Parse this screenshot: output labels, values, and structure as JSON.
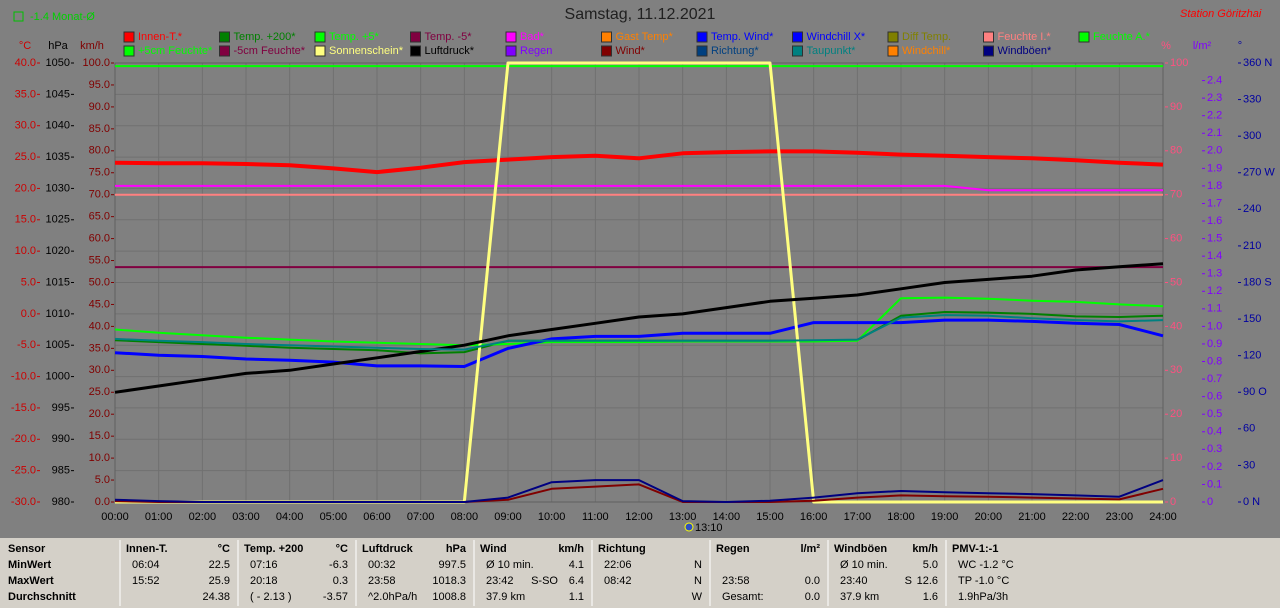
{
  "chart_data": {
    "type": "line",
    "title": "Samstag, 11.12.2021",
    "station": "Station Göritzhai",
    "month_average": "-1.4 Monat-Ø",
    "marker_label": "13:10",
    "grid": true,
    "x": [
      0,
      1,
      2,
      3,
      4,
      5,
      6,
      7,
      8,
      9,
      10,
      11,
      12,
      13,
      14,
      15,
      16,
      17,
      18,
      19,
      20,
      21,
      22,
      23,
      24
    ],
    "xlim": [
      0,
      24
    ],
    "xticks": [
      {
        "value": 0,
        "label": "00:00"
      },
      {
        "value": 1,
        "label": "01:00"
      },
      {
        "value": 2,
        "label": "02:00"
      },
      {
        "value": 3,
        "label": "03:00"
      },
      {
        "value": 4,
        "label": "04:00"
      },
      {
        "value": 5,
        "label": "05:00"
      },
      {
        "value": 6,
        "label": "06:00"
      },
      {
        "value": 7,
        "label": "07:00"
      },
      {
        "value": 8,
        "label": "08:00"
      },
      {
        "value": 9,
        "label": "09:00"
      },
      {
        "value": 10,
        "label": "10:00"
      },
      {
        "value": 11,
        "label": "11:00"
      },
      {
        "value": 12,
        "label": "12:00"
      },
      {
        "value": 13,
        "label": "13:00"
      },
      {
        "value": 14,
        "label": "14:00"
      },
      {
        "value": 15,
        "label": "15:00"
      },
      {
        "value": 16,
        "label": "16:00"
      },
      {
        "value": 17,
        "label": "17:00"
      },
      {
        "value": 18,
        "label": "18:00"
      },
      {
        "value": 19,
        "label": "19:00"
      },
      {
        "value": 20,
        "label": "20:00"
      },
      {
        "value": 21,
        "label": "21:00"
      },
      {
        "value": 22,
        "label": "22:00"
      },
      {
        "value": 23,
        "label": "23:00"
      },
      {
        "value": 24,
        "label": "24:00"
      }
    ],
    "axes": [
      {
        "unit": "°C",
        "color": "#cc0000",
        "side": "left",
        "lim": [
          -30,
          40
        ],
        "ticks": [
          {
            "value": 40,
            "label": "40.0"
          },
          {
            "value": 35,
            "label": "35.0"
          },
          {
            "value": 30,
            "label": "30.0"
          },
          {
            "value": 25,
            "label": "25.0"
          },
          {
            "value": 20,
            "label": "20.0"
          },
          {
            "value": 15,
            "label": "15.0"
          },
          {
            "value": 10,
            "label": "10.0"
          },
          {
            "value": 5,
            "label": "5.0"
          },
          {
            "value": 0,
            "label": "0.0"
          },
          {
            "value": -5,
            "label": "-5.0"
          },
          {
            "value": -10,
            "label": "-10.0"
          },
          {
            "value": -15,
            "label": "-15.0"
          },
          {
            "value": -20,
            "label": "-20.0"
          },
          {
            "value": -25,
            "label": "-25.0"
          },
          {
            "value": -30,
            "label": "-30.0"
          }
        ]
      },
      {
        "unit": "hPa",
        "color": "#000000",
        "side": "left",
        "lim": [
          980,
          1050
        ],
        "ticks": [
          1050,
          1045,
          1040,
          1035,
          1030,
          1025,
          1020,
          1015,
          1010,
          1005,
          1000,
          995,
          990,
          985,
          980
        ]
      },
      {
        "unit": "km/h",
        "color": "#800000",
        "side": "left",
        "lim": [
          0,
          100
        ],
        "ticks": [
          {
            "value": 100,
            "label": "100.0"
          },
          {
            "value": 95,
            "label": "95.0"
          },
          {
            "value": 90,
            "label": "90.0"
          },
          {
            "value": 85,
            "label": "85.0"
          },
          {
            "value": 80,
            "label": "80.0"
          },
          {
            "value": 75,
            "label": "75.0"
          },
          {
            "value": 70,
            "label": "70.0"
          },
          {
            "value": 65,
            "label": "65.0"
          },
          {
            "value": 60,
            "label": "60.0"
          },
          {
            "value": 55,
            "label": "55.0"
          },
          {
            "value": 50,
            "label": "50.0"
          },
          {
            "value": 45,
            "label": "45.0"
          },
          {
            "value": 40,
            "label": "40.0"
          },
          {
            "value": 35,
            "label": "35.0"
          },
          {
            "value": 30,
            "label": "30.0"
          },
          {
            "value": 25,
            "label": "25.0"
          },
          {
            "value": 20,
            "label": "20.0"
          },
          {
            "value": 15,
            "label": "15.0"
          },
          {
            "value": 10,
            "label": "10.0"
          },
          {
            "value": 5,
            "label": "5.0"
          },
          {
            "value": 0,
            "label": "0.0"
          }
        ]
      },
      {
        "unit": "%",
        "color": "#ff5080",
        "side": "right",
        "lim": [
          0,
          100
        ],
        "ticks": [
          100,
          90,
          80,
          70,
          60,
          50,
          40,
          30,
          20,
          10,
          0
        ]
      },
      {
        "unit": "l/m²",
        "color": "#8000ff",
        "side": "right",
        "lim": [
          0,
          2.5
        ],
        "ticks": [
          2.4,
          2.3,
          2.2,
          2.1,
          {
            "value": 2,
            "label": "2.0"
          },
          1.9,
          1.8,
          1.7,
          1.6,
          1.5,
          1.4,
          1.3,
          1.2,
          1.1,
          {
            "value": 1,
            "label": "1.0"
          },
          0.9,
          0.8,
          0.7,
          0.6,
          0.5,
          0.4,
          0.3,
          0.2,
          0.1,
          0
        ]
      },
      {
        "unit": "°",
        "color": "#0000a0",
        "side": "right",
        "lim": [
          0,
          360
        ],
        "ticks": [
          {
            "value": 360,
            "label": "360 N"
          },
          330,
          300,
          {
            "value": 270,
            "label": "270 W"
          },
          240,
          210,
          {
            "value": 180,
            "label": "180 S"
          },
          150,
          120,
          {
            "value": 90,
            "label": "90 O"
          },
          60,
          30,
          {
            "value": 0,
            "label": "0 N"
          }
        ]
      }
    ],
    "series": [
      {
        "name": "Innen-T.*",
        "color": "#ff0000",
        "axis": 0,
        "width": 4,
        "values": [
          24.1,
          24,
          24,
          23.9,
          23.7,
          23.2,
          22.6,
          23.3,
          24.2,
          24.6,
          25,
          25.2,
          24.8,
          25.6,
          25.8,
          25.9,
          25.9,
          25.7,
          25.4,
          25.2,
          25,
          24.8,
          24.5,
          24.1,
          23.8
        ]
      },
      {
        "name": "Temp. +200*",
        "color": "#008000",
        "axis": 0,
        "width": 2,
        "values": [
          -4.2,
          -4.5,
          -4.8,
          -5.1,
          -5.4,
          -5.6,
          -5.8,
          -6.3,
          -6.1,
          -4.3,
          -4.3,
          -4.3,
          -4.3,
          -4.3,
          -4.3,
          -4.3,
          -4.3,
          -4.2,
          -0.3,
          0.3,
          0.2,
          0,
          -0.4,
          -0.5,
          -0.3
        ]
      },
      {
        "name": "Temp. +5*",
        "color": "#00ff00",
        "axis": 0,
        "width": 2,
        "values": [
          -2.5,
          -3,
          -3.4,
          -3.8,
          -4.1,
          -4.4,
          -4.6,
          -4.8,
          -5,
          -4.8,
          -4.5,
          -4.5,
          -4.5,
          -4.4,
          -4.4,
          -4.4,
          -4.4,
          -4.3,
          2.5,
          2.6,
          2.4,
          2.1,
          1.9,
          1.5,
          1.2
        ]
      },
      {
        "name": "Temp. -5*",
        "color": "#800040"
      },
      {
        "name": "Bad*",
        "color": "#ff00ff",
        "axis": 3,
        "width": 2,
        "values": [
          72,
          72,
          72,
          72,
          72,
          72,
          72,
          72,
          72,
          72,
          72,
          72,
          72,
          72,
          72,
          72,
          72,
          72,
          72,
          72,
          71,
          71,
          71,
          71,
          71
        ]
      },
      {
        "name": "Gast Temp*",
        "color": "#ff8000"
      },
      {
        "name": "Temp. Wind*",
        "color": "#0000ff"
      },
      {
        "name": "Windchill X*",
        "color": "#0000ff",
        "axis": 0,
        "width": 3,
        "values": [
          -6.2,
          -6.6,
          -6.8,
          -7.2,
          -7.4,
          -7.7,
          -8.3,
          -8.3,
          -8.4,
          -5.5,
          -4,
          -3.6,
          -3.6,
          -3.1,
          -3.1,
          -3.1,
          -1.4,
          -1.4,
          -1.4,
          -1,
          -1,
          -1.2,
          -1.5,
          -1.7,
          -3.5
        ]
      },
      {
        "name": "Diff Temp.",
        "color": "#808000"
      },
      {
        "name": "Feuchte I.*",
        "color": "#ff8080",
        "axis": 3,
        "width": 2,
        "values": [
          70,
          70,
          70,
          70,
          70,
          70,
          70,
          70,
          70,
          70,
          70,
          70,
          70,
          70,
          70,
          70,
          70,
          70,
          70,
          70,
          70,
          70,
          70,
          70,
          70
        ]
      },
      {
        "name": "Feuchte A.*",
        "color": "#00ff00"
      },
      {
        "name": "+5cm Feuchte*",
        "color": "#00ff00",
        "axis": 3,
        "width": 2,
        "values": [
          99.3,
          99.3,
          99.3,
          99.3,
          99.3,
          99.3,
          99.3,
          99.3,
          99.3,
          99.3,
          99.3,
          99.3,
          99.3,
          99.3,
          99.3,
          99.3,
          99.3,
          99.3,
          99.3,
          99.3,
          99.3,
          99.3,
          99.3,
          99.3,
          99.3
        ]
      },
      {
        "name": "-5cm Feuchte*",
        "color": "#800040",
        "axis": 3,
        "width": 2,
        "values": [
          53.5,
          53.5,
          53.5,
          53.5,
          53.5,
          53.5,
          53.5,
          53.5,
          53.5,
          53.5,
          53.5,
          53.5,
          53.5,
          53.5,
          53.5,
          53.5,
          53.5,
          53.5,
          53.5,
          53.5,
          53.5,
          53.5,
          53.5,
          53.5,
          53.5
        ]
      },
      {
        "name": "Sonnenschein*",
        "color": "#ffff80",
        "axis": 3,
        "width": 3,
        "values": [
          0,
          0,
          0,
          0,
          0,
          0,
          0,
          0,
          0,
          100,
          100,
          100,
          100,
          100,
          100,
          100,
          0,
          0,
          0,
          0,
          0,
          0,
          0,
          0,
          0
        ]
      },
      {
        "name": "Luftdruck*",
        "color": "#000000",
        "axis": 1,
        "width": 3,
        "values": [
          997.5,
          998.5,
          999.5,
          1000.5,
          1001,
          1002,
          1003,
          1004,
          1005,
          1006.5,
          1007.5,
          1008.5,
          1009.5,
          1010,
          1011,
          1012,
          1012.5,
          1013,
          1014,
          1015,
          1015.5,
          1016,
          1017,
          1017.5,
          1018
        ]
      },
      {
        "name": "Regen",
        "color": "#8000ff"
      },
      {
        "name": "Wind*",
        "color": "#800000",
        "axis": 2,
        "width": 2,
        "values": [
          0.2,
          0,
          0,
          0,
          0,
          0,
          0,
          0,
          0,
          0.5,
          3,
          3.5,
          4,
          0,
          0,
          0,
          0.3,
          1,
          1.5,
          1.3,
          1.2,
          1,
          0.8,
          0.6,
          3
        ]
      },
      {
        "name": "Richtung*",
        "color": "#004080"
      },
      {
        "name": "Taupunkt*",
        "color": "#008080",
        "axis": 0,
        "width": 2,
        "values": [
          -4,
          -4.3,
          -4.5,
          -4.8,
          -5,
          -5.2,
          -5.4,
          -5.6,
          -5.7,
          -4.3,
          -4.3,
          -4.3,
          -4.3,
          -4.3,
          -4.3,
          -4.3,
          -4.2,
          -4.1,
          -0.6,
          -0.2,
          -0.3,
          -0.7,
          -1,
          -1.2,
          -1
        ]
      },
      {
        "name": "Windchill*",
        "color": "#ff8000"
      },
      {
        "name": "Windböen*",
        "color": "#000080",
        "axis": 2,
        "width": 2,
        "values": [
          0.5,
          0.2,
          0,
          0,
          0,
          0,
          0,
          0,
          0,
          1,
          4.5,
          5,
          5,
          0.2,
          0,
          0.3,
          1,
          2,
          2.5,
          2.2,
          2,
          1.8,
          1.5,
          1.2,
          5
        ]
      }
    ]
  },
  "table": {
    "columns": [
      {
        "header": "Sensor",
        "rows": [
          {
            "left": "MinWert"
          },
          {
            "left": "MaxWert"
          },
          {
            "left": "Durchschnitt"
          }
        ]
      },
      {
        "header": "Innen-T.",
        "unit": "°C",
        "rows": [
          {
            "left": "06:04",
            "right": "22.5"
          },
          {
            "left": "15:52",
            "right": "25.9"
          },
          {
            "right": "24.38"
          }
        ]
      },
      {
        "header": "Temp. +200",
        "unit": "°C",
        "rows": [
          {
            "left": "07:16",
            "right": "-6.3"
          },
          {
            "left": "20:18",
            "right": "0.3"
          },
          {
            "left": "( - 2.13 )",
            "right": "-3.57"
          }
        ]
      },
      {
        "header": "Luftdruck",
        "unit": "hPa",
        "rows": [
          {
            "left": "00:32",
            "right": "997.5"
          },
          {
            "left": "23:58",
            "right": "1018.3"
          },
          {
            "left": "^2.0hPa/h",
            "right": "1008.8"
          }
        ]
      },
      {
        "header": "Wind",
        "unit": "km/h",
        "rows": [
          {
            "left": "Ø 10 min.",
            "right": "4.1"
          },
          {
            "left": "23:42",
            "mid": "S-SO",
            "right": "6.4"
          },
          {
            "left": "37.9 km",
            "right": "1.1"
          }
        ]
      },
      {
        "header": "Richtung",
        "rows": [
          {
            "left": "22:06",
            "right": "N"
          },
          {
            "left": "08:42",
            "right": "N"
          },
          {
            "right": "W"
          }
        ]
      },
      {
        "header": "Regen",
        "unit": "l/m²",
        "rows": [
          {},
          {
            "left": "23:58",
            "right": "0.0"
          },
          {
            "left": "Gesamt:",
            "right": "0.0"
          }
        ]
      },
      {
        "header": "Windböen",
        "unit": "km/h",
        "rows": [
          {
            "left": "Ø 10 min.",
            "right": "5.0"
          },
          {
            "left": "23:40",
            "mid": "S",
            "right": "12.6"
          },
          {
            "left": "37.9 km",
            "right": "1.6"
          }
        ]
      },
      {
        "header": "PMV-1:-1",
        "rows": [
          {
            "left": "WC -1.2 °C"
          },
          {
            "left": "TP -1.0 °C"
          },
          {
            "left": "1.9hPa/3h"
          }
        ]
      }
    ]
  }
}
